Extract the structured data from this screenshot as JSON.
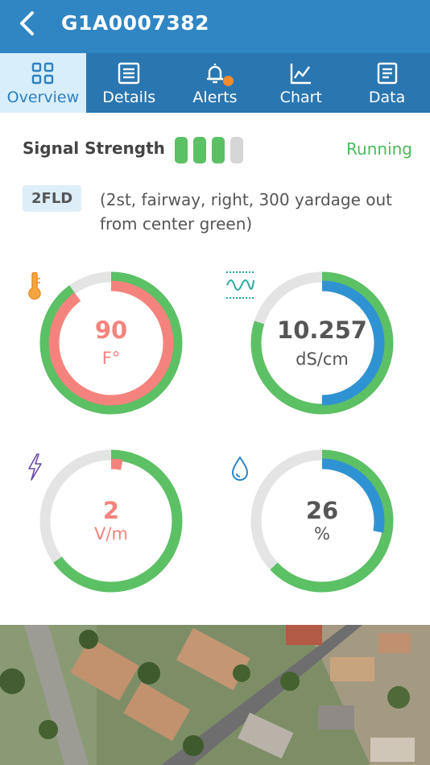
{
  "header": {
    "title": "G1A0007382"
  },
  "tabs": [
    {
      "label": "Overview",
      "icon": "grid-icon",
      "active": true
    },
    {
      "label": "Details",
      "icon": "list-icon",
      "active": false
    },
    {
      "label": "Alerts",
      "icon": "bell-icon",
      "active": false
    },
    {
      "label": "Chart",
      "icon": "line-chart-icon",
      "active": false
    },
    {
      "label": "Data",
      "icon": "document-icon",
      "active": false
    }
  ],
  "signal": {
    "label": "Signal Strength",
    "level": 3,
    "max": 4,
    "status": "Running"
  },
  "location": {
    "tag": "2FLD",
    "description": "(2st, fairway, right, 300 yardage out from center green)"
  },
  "gauges": [
    {
      "icon": "thermometer-icon",
      "value": "90",
      "unit": "F°",
      "color": "#f4837d",
      "outer_fraction": 0.9,
      "inner_fraction": 0.9
    },
    {
      "icon": "conductivity-wave-icon",
      "value": "10.257",
      "unit": "dS/cm",
      "color": "#555555",
      "outer_fraction": 0.8,
      "inner_fraction": 0.5
    },
    {
      "icon": "lightning-icon",
      "value": "2",
      "unit": "V/m",
      "color": "#f4837d",
      "outer_fraction": 0.65,
      "inner_fraction": 0.03
    },
    {
      "icon": "water-drop-icon",
      "value": "26",
      "unit": "%",
      "color": "#555555",
      "outer_fraction": 0.63,
      "inner_fraction": 0.28
    }
  ],
  "colors": {
    "header": "#2f86c3",
    "tabs": "#2a76b0",
    "active_tab": "#d8eefa",
    "green": "#5cc065",
    "blue": "#2f93d3",
    "salmon": "#f4837d",
    "track": "#e4e4e4"
  },
  "map": {
    "icon": "satellite-map-image"
  }
}
